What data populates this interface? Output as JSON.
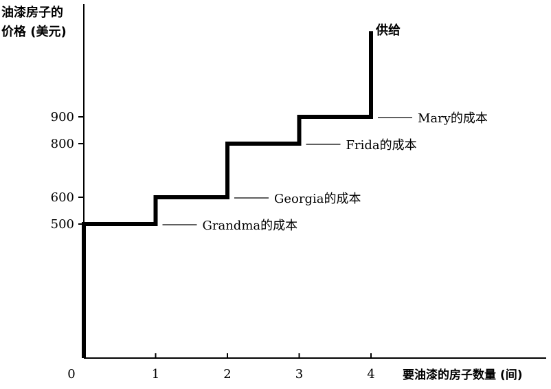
{
  "chart_data": {
    "type": "line",
    "title": "",
    "ylabel_line1": "油漆房子的",
    "ylabel_line2": "价格 (美元)",
    "xlabel": "要油漆的房子数量 (间)",
    "xticks": [
      0,
      1,
      2,
      3,
      4
    ],
    "yticks": [
      500,
      600,
      800,
      900
    ],
    "xlim": [
      0,
      4.6
    ],
    "ylim": [
      0,
      1250
    ],
    "series": [
      {
        "name": "供给",
        "step_points": [
          [
            0,
            0
          ],
          [
            0,
            500
          ],
          [
            1,
            500
          ],
          [
            1,
            600
          ],
          [
            2,
            600
          ],
          [
            2,
            800
          ],
          [
            3,
            800
          ],
          [
            3,
            900
          ],
          [
            4,
            900
          ],
          [
            4,
            1220
          ]
        ]
      }
    ],
    "annotations": [
      {
        "text": "Mary的成本",
        "x": 4,
        "y": 900
      },
      {
        "text": "Frida的成本",
        "x": 3,
        "y": 800
      },
      {
        "text": "Georgia的成本",
        "x": 2,
        "y": 600
      },
      {
        "text": "Grandma的成本",
        "x": 1,
        "y": 500
      }
    ]
  },
  "colors": {
    "line": "#000000",
    "text": "#000000"
  }
}
